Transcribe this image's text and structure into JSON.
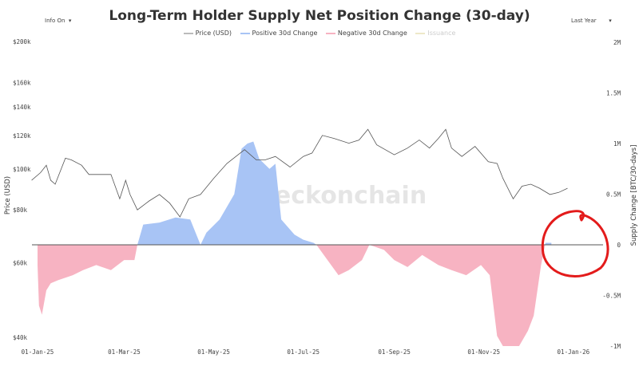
{
  "controls": {
    "info_toggle": "Info On",
    "range_select": "Last Year",
    "caret": "▾"
  },
  "chart_data": {
    "type": "area",
    "title": "Long-Term Holder Supply Net Position Change (30-day)",
    "watermark": "_checkonchain",
    "legend": [
      "Price (USD)",
      "Positive 30d Change",
      "Negative 30d Change",
      "Issuance"
    ],
    "legend_placement": "top",
    "colors": {
      "price": "#555555",
      "positive": "#a8c4f5",
      "negative": "#f7b3c2",
      "issuance": "#e8e2c0",
      "annotation": "#e31b1b"
    },
    "ylabel_left": "Price (USD)",
    "ylabel_right": "Supply Change [BTC/30-days]",
    "left_axis": {
      "scale": "log",
      "range": [
        40000,
        200000
      ],
      "ticks": [
        "$40k",
        "$60k",
        "$80k",
        "$100k",
        "$120k",
        "$140k",
        "$160k",
        "$200k"
      ],
      "tick_values": [
        40000,
        60000,
        80000,
        100000,
        120000,
        140000,
        160000,
        200000
      ]
    },
    "right_axis": {
      "scale": "linear",
      "range": [
        -1000000,
        2000000
      ],
      "ticks": [
        "-1M",
        "-0.5M",
        "0",
        "0.5M",
        "1M",
        "1.5M",
        "2M"
      ],
      "tick_values": [
        -1000000,
        -500000,
        0,
        500000,
        1000000,
        1500000,
        2000000
      ]
    },
    "x_axis": {
      "range": [
        "2025-01-01",
        "2026-01-01"
      ],
      "ticks": [
        "01-Jan-25",
        "01-Mar-25",
        "01-May-25",
        "01-Jul-25",
        "01-Sep-25",
        "01-Nov-25",
        "01-Jan-26"
      ],
      "tick_dates": [
        "2025-01-01",
        "2025-03-01",
        "2025-05-01",
        "2025-07-01",
        "2025-09-01",
        "2025-11-01",
        "2026-01-01"
      ]
    },
    "grid": false,
    "price_series": {
      "name": "Price (USD)",
      "x": [
        "2024-12-28",
        "2025-01-03",
        "2025-01-07",
        "2025-01-10",
        "2025-01-13",
        "2025-01-20",
        "2025-01-24",
        "2025-01-31",
        "2025-02-05",
        "2025-02-12",
        "2025-02-20",
        "2025-02-26",
        "2025-03-02",
        "2025-03-05",
        "2025-03-10",
        "2025-03-18",
        "2025-03-25",
        "2025-04-01",
        "2025-04-08",
        "2025-04-14",
        "2025-04-22",
        "2025-05-01",
        "2025-05-10",
        "2025-05-22",
        "2025-05-30",
        "2025-06-05",
        "2025-06-12",
        "2025-06-22",
        "2025-07-01",
        "2025-07-07",
        "2025-07-14",
        "2025-07-22",
        "2025-08-01",
        "2025-08-08",
        "2025-08-14",
        "2025-08-20",
        "2025-09-01",
        "2025-09-10",
        "2025-09-18",
        "2025-09-25",
        "2025-10-01",
        "2025-10-06",
        "2025-10-10",
        "2025-10-17",
        "2025-10-26",
        "2025-11-04",
        "2025-11-10",
        "2025-11-14",
        "2025-11-21",
        "2025-11-27",
        "2025-12-03",
        "2025-12-09",
        "2025-12-16",
        "2025-12-22",
        "2025-12-28"
      ],
      "values": [
        94000,
        98000,
        102000,
        94000,
        92000,
        106000,
        105000,
        102000,
        97000,
        97000,
        97000,
        85000,
        94000,
        87000,
        80000,
        84000,
        87000,
        83000,
        77000,
        85000,
        87000,
        95000,
        103000,
        111000,
        105000,
        105000,
        107000,
        101000,
        107000,
        109000,
        120000,
        118000,
        115000,
        117000,
        124000,
        114000,
        108000,
        112000,
        117000,
        112000,
        118000,
        124000,
        112000,
        107000,
        113000,
        104000,
        103000,
        95000,
        85000,
        91000,
        92000,
        90000,
        87000,
        88000,
        90000
      ]
    },
    "supply_series": {
      "x": [
        "2025-01-01",
        "2025-01-02",
        "2025-01-04",
        "2025-01-07",
        "2025-01-10",
        "2025-01-15",
        "2025-01-25",
        "2025-02-01",
        "2025-02-10",
        "2025-02-20",
        "2025-03-01",
        "2025-03-08",
        "2025-03-10",
        "2025-03-14",
        "2025-03-25",
        "2025-04-05",
        "2025-04-15",
        "2025-04-22",
        "2025-04-26",
        "2025-05-05",
        "2025-05-15",
        "2025-05-20",
        "2025-05-24",
        "2025-05-28",
        "2025-06-01",
        "2025-06-08",
        "2025-06-12",
        "2025-06-16",
        "2025-06-25",
        "2025-07-01",
        "2025-07-08",
        "2025-07-10",
        "2025-07-15",
        "2025-07-25",
        "2025-08-01",
        "2025-08-10",
        "2025-08-15",
        "2025-08-25",
        "2025-09-01",
        "2025-09-10",
        "2025-09-20",
        "2025-10-01",
        "2025-10-10",
        "2025-10-20",
        "2025-10-30",
        "2025-11-05",
        "2025-11-10",
        "2025-11-14",
        "2025-11-25",
        "2025-12-01",
        "2025-12-05",
        "2025-12-10",
        "2025-12-13",
        "2025-12-17"
      ],
      "values": [
        -200000,
        -600000,
        -690000,
        -450000,
        -380000,
        -350000,
        -300000,
        -250000,
        -200000,
        -250000,
        -150000,
        -150000,
        0,
        200000,
        220000,
        270000,
        250000,
        0,
        120000,
        250000,
        500000,
        950000,
        1000000,
        1020000,
        850000,
        750000,
        800000,
        250000,
        100000,
        50000,
        20000,
        0,
        -100000,
        -300000,
        -250000,
        -150000,
        0,
        -50000,
        -150000,
        -220000,
        -100000,
        -200000,
        -250000,
        -300000,
        -200000,
        -300000,
        -900000,
        -1000000,
        -1000000,
        -850000,
        -700000,
        -200000,
        20000,
        20000
      ]
    }
  }
}
